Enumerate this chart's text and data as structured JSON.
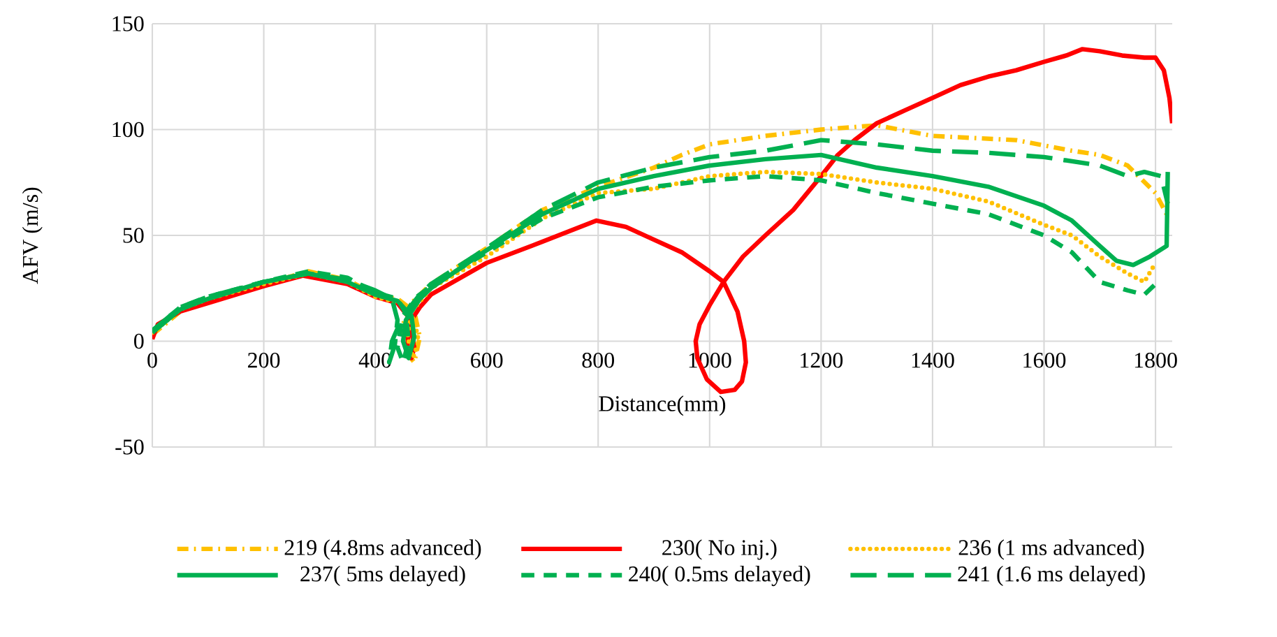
{
  "chart_data": {
    "type": "line",
    "xlabel": "Distance(mm)",
    "ylabel": "AFV (m/s)",
    "xlim": [
      0,
      1830
    ],
    "ylim": [
      -50,
      150
    ],
    "xticks": [
      0,
      200,
      400,
      600,
      800,
      1000,
      1200,
      1400,
      1600,
      1800
    ],
    "yticks": [
      -50,
      0,
      50,
      100,
      150
    ],
    "grid": true,
    "legend": "bottom",
    "series": [
      {
        "name": "219 (4.8ms advanced)",
        "color": "#ffc000",
        "line_style": "dashdot",
        "x": [
          0,
          50,
          100,
          200,
          280,
          350,
          400,
          440,
          470,
          480,
          470,
          455,
          450,
          465,
          500,
          600,
          700,
          800,
          900,
          950,
          1000,
          1100,
          1200,
          1300,
          1400,
          1550,
          1650,
          1700,
          1750,
          1800,
          1820
        ],
        "values": [
          3,
          14,
          19,
          27,
          33,
          29,
          22,
          20,
          14,
          2,
          -10,
          -5,
          8,
          18,
          27,
          44,
          62,
          73,
          82,
          88,
          93,
          97,
          100,
          102,
          97,
          95,
          90,
          88,
          83,
          70,
          60
        ]
      },
      {
        "name": "230( No inj.)",
        "color": "#ff0000",
        "line_style": "solid",
        "x": [
          0,
          10,
          50,
          100,
          200,
          270,
          350,
          400,
          440,
          458,
          465,
          470,
          465,
          458,
          460,
          480,
          500,
          600,
          700,
          797,
          850,
          900,
          950,
          1000,
          1025,
          1050,
          1062,
          1065,
          1058,
          1045,
          1020,
          995,
          978,
          975,
          982,
          1000,
          1025,
          1060,
          1100,
          1150,
          1200,
          1230,
          1260,
          1300,
          1350,
          1400,
          1450,
          1500,
          1550,
          1600,
          1640,
          1669,
          1700,
          1740,
          1780,
          1800,
          1815,
          1825,
          1830
        ],
        "values": [
          1,
          8,
          14,
          18,
          26,
          31,
          27,
          21,
          18,
          12,
          5,
          -3,
          -8,
          -2,
          8,
          16,
          22,
          37,
          47,
          57,
          54,
          48,
          42,
          33,
          28,
          14,
          0,
          -10,
          -19,
          -23,
          -24,
          -18,
          -8,
          0,
          8,
          17,
          28,
          40,
          50,
          62,
          78,
          88,
          95,
          103,
          109,
          115,
          121,
          125,
          128,
          132,
          135,
          138,
          137,
          135,
          134,
          134,
          128,
          115,
          103
        ]
      },
      {
        "name": "236 (1 ms advanced)",
        "color": "#ffc000",
        "line_style": "dotted",
        "x": [
          0,
          50,
          100,
          200,
          280,
          350,
          400,
          445,
          470,
          478,
          468,
          458,
          465,
          500,
          600,
          700,
          800,
          900,
          1000,
          1100,
          1200,
          1300,
          1400,
          1500,
          1600,
          1650,
          1700,
          1750,
          1780,
          1800
        ],
        "values": [
          4,
          15,
          20,
          27,
          32,
          28,
          21,
          18,
          10,
          0,
          -8,
          2,
          14,
          25,
          40,
          58,
          70,
          72,
          78,
          80,
          79,
          75,
          72,
          66,
          55,
          50,
          40,
          32,
          28,
          37
        ]
      },
      {
        "name": "237( 5ms delayed)",
        "color": "#00b050",
        "line_style": "solid",
        "x": [
          0,
          50,
          100,
          200,
          280,
          350,
          400,
          440,
          465,
          470,
          460,
          450,
          455,
          480,
          500,
          600,
          700,
          800,
          900,
          1000,
          1100,
          1200,
          1300,
          1400,
          1500,
          1600,
          1650,
          1700,
          1730,
          1760,
          1790,
          1820,
          1822
        ],
        "values": [
          4,
          15,
          20,
          28,
          32,
          28,
          22,
          19,
          12,
          2,
          -8,
          0,
          10,
          20,
          25,
          43,
          60,
          72,
          78,
          83,
          86,
          88,
          82,
          78,
          73,
          64,
          57,
          45,
          38,
          36,
          40,
          45,
          80
        ]
      },
      {
        "name": "240( 0.5ms delayed)",
        "color": "#00b050",
        "line_style": "dashed",
        "x": [
          0,
          50,
          100,
          200,
          280,
          350,
          400,
          440,
          455,
          460,
          450,
          440,
          448,
          470,
          500,
          600,
          700,
          800,
          900,
          1000,
          1100,
          1200,
          1300,
          1400,
          1500,
          1600,
          1650,
          1700,
          1750,
          1780,
          1800
        ],
        "values": [
          5,
          16,
          21,
          28,
          33,
          30,
          23,
          20,
          13,
          0,
          -10,
          -3,
          10,
          20,
          26,
          42,
          58,
          68,
          73,
          76,
          78,
          76,
          70,
          65,
          60,
          50,
          42,
          28,
          24,
          22,
          27
        ]
      },
      {
        "name": "241 (1.6 ms delayed)",
        "color": "#00b050",
        "line_style": "longdash",
        "x": [
          0,
          50,
          100,
          200,
          280,
          350,
          400,
          430,
          440,
          435,
          425,
          430,
          450,
          480,
          500,
          600,
          700,
          800,
          900,
          1000,
          1100,
          1200,
          1300,
          1400,
          1500,
          1600,
          1700,
          1750,
          1780,
          1810,
          1822
        ],
        "values": [
          5,
          16,
          21,
          28,
          32,
          29,
          24,
          20,
          10,
          -2,
          -10,
          0,
          12,
          22,
          27,
          44,
          62,
          75,
          82,
          87,
          90,
          95,
          93,
          90,
          89,
          87,
          83,
          78,
          80,
          78,
          65
        ]
      }
    ]
  }
}
